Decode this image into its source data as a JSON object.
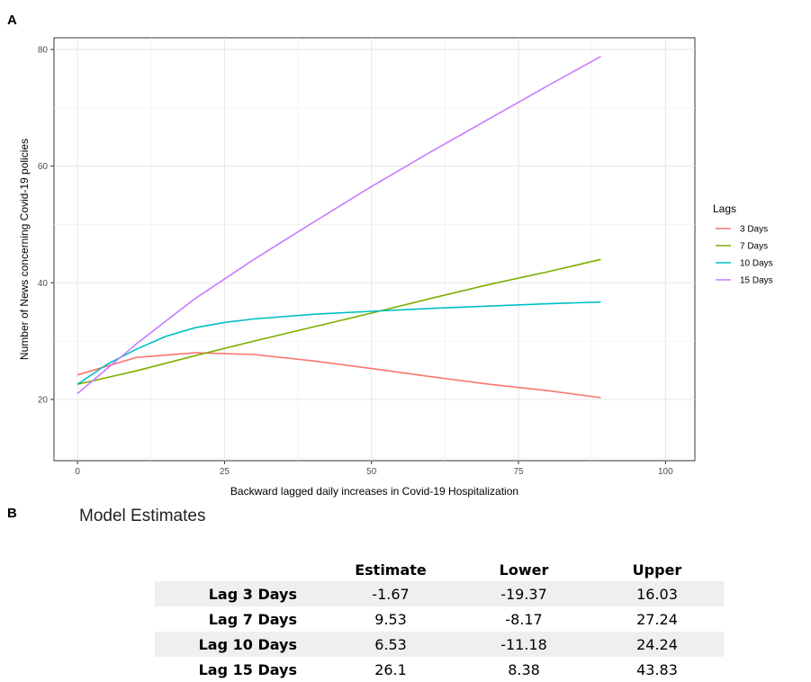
{
  "panel_a_label": "A",
  "panel_b_label": "B",
  "chart_data": {
    "type": "line",
    "xlabel": "Backward lagged daily increases in Covid-19 Hospitalization",
    "ylabel": "Number of News concerning Covid-19 policies",
    "xlim": [
      -4,
      105
    ],
    "ylim": [
      9.5,
      82
    ],
    "x_ticks": [
      0,
      25,
      50,
      75,
      100
    ],
    "y_ticks": [
      20,
      40,
      60,
      80
    ],
    "grid": true,
    "legend_title": "Lags",
    "legend_position": "right",
    "series": [
      {
        "name": "3 Days",
        "color": "#f8766d",
        "x": [
          0,
          10,
          20,
          30,
          40,
          50,
          60,
          70,
          80,
          89
        ],
        "y": [
          24.2,
          27.2,
          28.0,
          27.7,
          26.6,
          25.3,
          23.9,
          22.6,
          21.5,
          20.3
        ]
      },
      {
        "name": "7 Days",
        "color": "#7cae00",
        "x": [
          0,
          10,
          20,
          30,
          40,
          50,
          60,
          70,
          80,
          89
        ],
        "y": [
          22.6,
          24.9,
          27.5,
          30.0,
          32.4,
          34.8,
          37.3,
          39.7,
          41.9,
          44.0
        ]
      },
      {
        "name": " 10 Days",
        "color": "#00bfc4",
        "x": [
          0,
          5,
          10,
          15,
          20,
          25,
          30,
          40,
          50,
          60,
          70,
          80,
          89
        ],
        "y": [
          22.6,
          26.0,
          28.6,
          30.8,
          32.3,
          33.2,
          33.8,
          34.6,
          35.1,
          35.6,
          36.0,
          36.4,
          36.7
        ]
      },
      {
        "name": "15 Days",
        "color": "#c77cff",
        "x": [
          0,
          10,
          20,
          30,
          40,
          50,
          60,
          70,
          80,
          89
        ],
        "y": [
          21.0,
          29.5,
          37.3,
          44.0,
          50.3,
          56.5,
          62.4,
          68.1,
          73.8,
          78.8
        ]
      }
    ]
  },
  "table": {
    "title": "Model Estimates",
    "headers": [
      "Estimate",
      "Lower",
      "Upper"
    ],
    "rows": [
      {
        "label": "Lag 3 Days",
        "estimate": "-1.67",
        "lower": "-19.37",
        "upper": "16.03"
      },
      {
        "label": "Lag 7 Days",
        "estimate": "9.53",
        "lower": "-8.17",
        "upper": "27.24"
      },
      {
        "label": "Lag 10 Days",
        "estimate": "6.53",
        "lower": "-11.18",
        "upper": "24.24"
      },
      {
        "label": "Lag 15 Days",
        "estimate": "26.1",
        "lower": "8.38",
        "upper": "43.83"
      }
    ]
  }
}
